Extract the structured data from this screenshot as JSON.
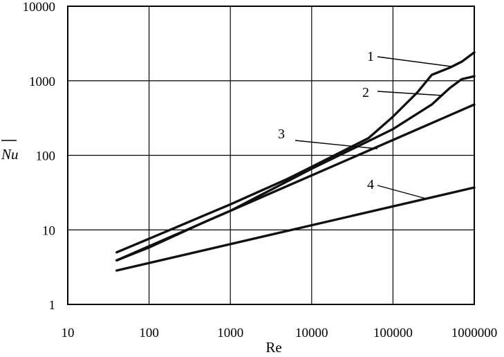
{
  "chart_data": {
    "type": "line",
    "xlabel": "Re",
    "ylabel": "Nu",
    "xscale": "log",
    "yscale": "log",
    "xlim": [
      10,
      1000000
    ],
    "ylim": [
      1,
      10000
    ],
    "grid": true,
    "legend": "none",
    "xticks": [
      "10",
      "100",
      "1000",
      "10000",
      "100000",
      "1000000"
    ],
    "yticks": [
      "1",
      "10",
      "100",
      "1000",
      "10000"
    ],
    "series": [
      {
        "name": "1",
        "x": [
          40,
          100,
          500,
          1000,
          5000,
          10000,
          50000,
          100000,
          200000,
          300000,
          500000,
          700000,
          1000000
        ],
        "y": [
          5,
          7.6,
          16,
          22,
          48,
          70,
          170,
          330,
          700,
          1200,
          1500,
          1800,
          2400
        ]
      },
      {
        "name": "2",
        "x": [
          40,
          100,
          500,
          1000,
          10000,
          50000,
          100000,
          300000,
          500000,
          700000,
          1000000
        ],
        "y": [
          3.9,
          5.8,
          13,
          18,
          66,
          155,
          225,
          480,
          800,
          1050,
          1150
        ]
      },
      {
        "name": "3",
        "x": [
          40,
          1000000
        ],
        "y": [
          3.9,
          480
        ]
      },
      {
        "name": "4",
        "x": [
          40,
          1000000
        ],
        "y": [
          2.85,
          37
        ]
      }
    ],
    "annotations": [
      {
        "text": "1",
        "target_series": "1"
      },
      {
        "text": "2",
        "target_series": "2"
      },
      {
        "text": "3",
        "target_series": "3"
      },
      {
        "text": "4",
        "target_series": "4"
      }
    ]
  }
}
